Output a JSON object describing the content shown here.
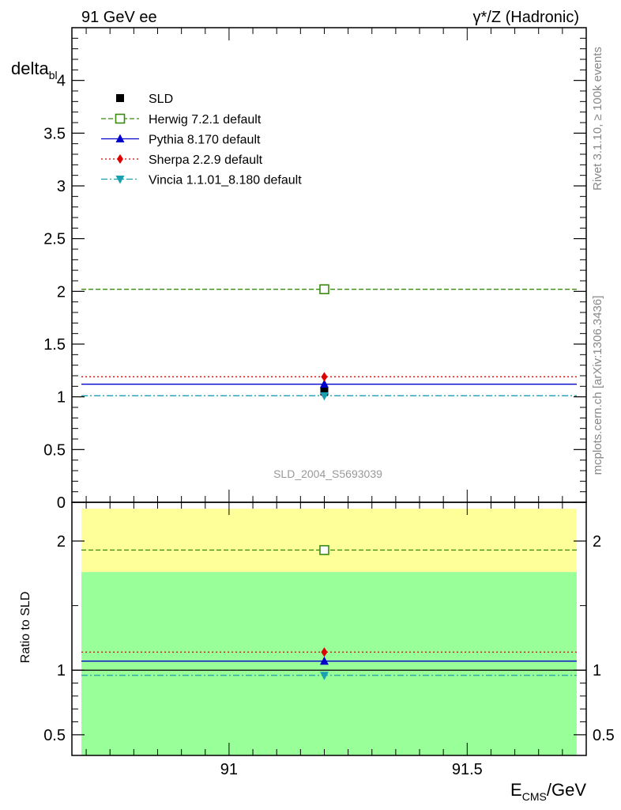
{
  "header": {
    "left": "91 GeV ee",
    "right": "γ*/Z (Hadronic)"
  },
  "side_text": {
    "rivet": "Rivet 3.1.10, ≥ 100k events",
    "mcplots": "mcplots.cern.ch [arXiv:1306.3436]"
  },
  "watermark": "SLD_2004_S5693039",
  "colors": {
    "herwig": "#3a8a10",
    "pythia": "#0000cc",
    "sherpa": "#dd0000",
    "vincia": "#1aa0b0",
    "band_yellow": "#ffff99",
    "band_green": "#99ff99"
  },
  "chart_data": [
    {
      "type": "line",
      "panel": "main",
      "ylabel": "delta",
      "ylabel_sub": "bl",
      "xlim": [
        90.67,
        91.75
      ],
      "ylim": [
        0,
        4.5
      ],
      "y_ticks": [
        0,
        0.5,
        1,
        1.5,
        2,
        2.5,
        3,
        3.5,
        4
      ],
      "y_tick_labels": [
        "0",
        "0.5",
        "1",
        "1.5",
        "2",
        "2.5",
        "3",
        "3.5",
        "4"
      ],
      "x_range": [
        90.69,
        91.73
      ],
      "x_point": 91.2,
      "legend_position": "top-left",
      "data": {
        "name": "SLD",
        "x": 91.2,
        "y": 1.05
      },
      "series": [
        {
          "name": "Herwig 7.2.1 default",
          "key": "herwig",
          "y": 2.02,
          "style": "dashed",
          "marker": "open-square"
        },
        {
          "name": "Pythia 8.170 default",
          "key": "pythia",
          "y": 1.12,
          "style": "solid",
          "marker": "triangle-up"
        },
        {
          "name": "Sherpa 2.2.9 default",
          "key": "sherpa",
          "y": 1.19,
          "style": "dotted",
          "marker": "diamond"
        },
        {
          "name": "Vincia 1.1.01_8.180 default",
          "key": "vincia",
          "y": 1.01,
          "style": "dashdot",
          "marker": "triangle-down"
        }
      ]
    },
    {
      "type": "line",
      "panel": "ratio",
      "ylabel": "Ratio to SLD",
      "xlabel": "E",
      "xlabel_sub": "CMS",
      "xlabel_suffix": "/GeV",
      "xlim": [
        90.67,
        91.75
      ],
      "ylim": [
        0.34,
        2.3
      ],
      "y_ticks": [
        0.5,
        1,
        2
      ],
      "y_tick_labels": [
        "0.5",
        "1",
        "2"
      ],
      "x_ticks": [
        91,
        91.5
      ],
      "x_tick_labels": [
        "91",
        "91.5"
      ],
      "bands": {
        "green": [
          0.34,
          1.76
        ],
        "yellow": [
          1.76,
          2.25
        ]
      },
      "reference": 1.0,
      "series": [
        {
          "name": "Herwig 7.2.1 default",
          "key": "herwig",
          "y": 1.93
        },
        {
          "name": "Pythia 8.170 default",
          "key": "pythia",
          "y": 1.07
        },
        {
          "name": "Sherpa 2.2.9 default",
          "key": "sherpa",
          "y": 1.14
        },
        {
          "name": "Vincia 1.1.01_8.180 default",
          "key": "vincia",
          "y": 0.96
        }
      ]
    }
  ]
}
